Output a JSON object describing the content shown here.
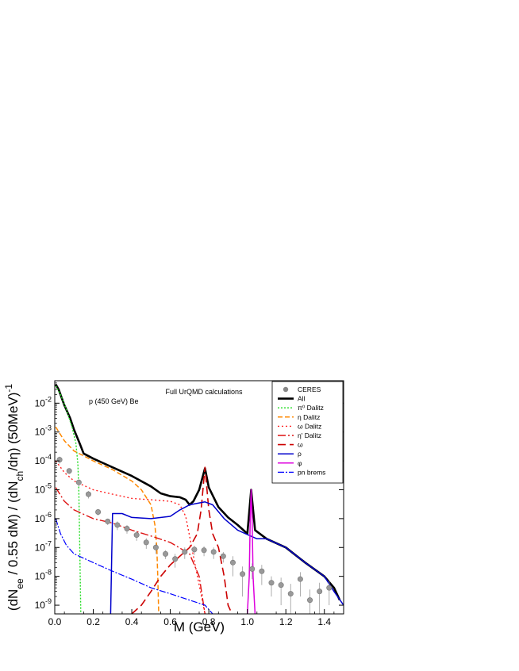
{
  "chart_data": {
    "type": "line",
    "title": "Full UrQMD calculations",
    "subtitle": "p (450 GeV) Be",
    "xlabel": "M (GeV)",
    "ylabel": "(dN_ee / 0.55 dM) / (dN_ch/dη) (50MeV)^-1",
    "xlim": [
      0,
      1.5
    ],
    "ylim": [
      5e-10,
      0.06
    ],
    "yscale": "log",
    "grid": false,
    "legend_position": "top-right",
    "x_ticks": [
      "0.0",
      "0.2",
      "0.4",
      "0.6",
      "0.8",
      "1.0",
      "1.2",
      "1.4"
    ],
    "y_ticks": [
      {
        "base": "10",
        "exp": "-9"
      },
      {
        "base": "10",
        "exp": "-8"
      },
      {
        "base": "10",
        "exp": "-7"
      },
      {
        "base": "10",
        "exp": "-6"
      },
      {
        "base": "10",
        "exp": "-5"
      },
      {
        "base": "10",
        "exp": "-4"
      },
      {
        "base": "10",
        "exp": "-3"
      },
      {
        "base": "10",
        "exp": "-2"
      }
    ],
    "series": [
      {
        "name": "All",
        "color": "#000000",
        "dash": "",
        "width": 2.6,
        "points": [
          [
            0.005,
            0.045
          ],
          [
            0.02,
            0.03
          ],
          [
            0.05,
            0.0085
          ],
          [
            0.08,
            0.003
          ],
          [
            0.1,
            0.0012
          ],
          [
            0.13,
            0.0004
          ],
          [
            0.15,
            0.00018
          ],
          [
            0.2,
            0.00012
          ],
          [
            0.3,
            6e-05
          ],
          [
            0.4,
            3e-05
          ],
          [
            0.5,
            1.3e-05
          ],
          [
            0.55,
            7.5e-06
          ],
          [
            0.6,
            6e-06
          ],
          [
            0.65,
            5.5e-06
          ],
          [
            0.68,
            4.5e-06
          ],
          [
            0.7,
            3e-06
          ],
          [
            0.72,
            4e-06
          ],
          [
            0.75,
            1e-05
          ],
          [
            0.78,
            5.5e-05
          ],
          [
            0.8,
            1.2e-05
          ],
          [
            0.85,
            2.5e-06
          ],
          [
            0.9,
            1.1e-06
          ],
          [
            0.95,
            6e-07
          ],
          [
            1.0,
            3e-07
          ],
          [
            1.02,
            1e-05
          ],
          [
            1.04,
            4e-07
          ],
          [
            1.1,
            2e-07
          ],
          [
            1.2,
            1e-07
          ],
          [
            1.3,
            3e-08
          ],
          [
            1.4,
            1e-08
          ],
          [
            1.45,
            4e-09
          ],
          [
            1.48,
            1.5e-09
          ]
        ]
      },
      {
        "name": "π⁰ Dalitz",
        "color": "#22dd22",
        "dash": "2,2",
        "width": 1.4,
        "points": [
          [
            0.005,
            0.04
          ],
          [
            0.03,
            0.02
          ],
          [
            0.06,
            0.006
          ],
          [
            0.09,
            0.0015
          ],
          [
            0.11,
            0.0004
          ],
          [
            0.12,
            8e-05
          ],
          [
            0.125,
            1e-05
          ],
          [
            0.13,
            1e-07
          ],
          [
            0.135,
            5e-10
          ]
        ]
      },
      {
        "name": "η Dalitz",
        "color": "#ff8800",
        "dash": "6,3",
        "width": 1.5,
        "points": [
          [
            0.005,
            0.0015
          ],
          [
            0.05,
            0.0005
          ],
          [
            0.1,
            0.00022
          ],
          [
            0.15,
            0.00015
          ],
          [
            0.2,
            0.0001
          ],
          [
            0.3,
            5e-05
          ],
          [
            0.4,
            2e-05
          ],
          [
            0.45,
            1e-05
          ],
          [
            0.5,
            3e-06
          ],
          [
            0.52,
            6e-07
          ],
          [
            0.53,
            1e-07
          ],
          [
            0.535,
            1e-08
          ],
          [
            0.54,
            5e-10
          ]
        ]
      },
      {
        "name": "ω Dalitz",
        "color": "#ff2222",
        "dash": "2,3",
        "width": 1.4,
        "points": [
          [
            0.005,
            0.0001
          ],
          [
            0.05,
            4e-05
          ],
          [
            0.1,
            2e-05
          ],
          [
            0.2,
            1e-05
          ],
          [
            0.3,
            7e-06
          ],
          [
            0.4,
            5e-06
          ],
          [
            0.5,
            4.5e-06
          ],
          [
            0.6,
            4e-06
          ],
          [
            0.65,
            3e-06
          ],
          [
            0.68,
            1.2e-06
          ],
          [
            0.7,
            2.5e-07
          ],
          [
            0.72,
            5e-08
          ],
          [
            0.75,
            5e-09
          ],
          [
            0.78,
            5e-10
          ]
        ]
      },
      {
        "name": "η' Dalitz",
        "color": "#dd1111",
        "dash": "10,3,2,3",
        "width": 1.4,
        "points": [
          [
            0.005,
            1.2e-05
          ],
          [
            0.05,
            4e-06
          ],
          [
            0.1,
            2e-06
          ],
          [
            0.2,
            1e-06
          ],
          [
            0.3,
            7e-07
          ],
          [
            0.4,
            4e-07
          ],
          [
            0.5,
            2.5e-07
          ],
          [
            0.6,
            1.5e-07
          ],
          [
            0.7,
            6e-08
          ],
          [
            0.75,
            1e-08
          ],
          [
            0.78,
            5e-10
          ]
        ]
      },
      {
        "name": "ω",
        "color": "#cc0000",
        "dash": "10,5",
        "width": 1.6,
        "points": [
          [
            0.4,
            5e-10
          ],
          [
            0.45,
            1e-09
          ],
          [
            0.5,
            3e-09
          ],
          [
            0.55,
            1e-08
          ],
          [
            0.6,
            2.5e-08
          ],
          [
            0.65,
            5e-08
          ],
          [
            0.7,
            1e-07
          ],
          [
            0.74,
            3e-07
          ],
          [
            0.76,
            2e-06
          ],
          [
            0.78,
            6e-05
          ],
          [
            0.8,
            2e-06
          ],
          [
            0.82,
            3e-07
          ],
          [
            0.85,
            1e-07
          ],
          [
            0.88,
            1e-08
          ],
          [
            0.9,
            1e-09
          ],
          [
            0.92,
            5e-10
          ]
        ]
      },
      {
        "name": "ρ",
        "color": "#0000cc",
        "dash": "",
        "width": 1.5,
        "points": [
          [
            0.29,
            5e-10
          ],
          [
            0.3,
            1.5e-06
          ],
          [
            0.35,
            1.5e-06
          ],
          [
            0.4,
            1.1e-06
          ],
          [
            0.5,
            1e-06
          ],
          [
            0.6,
            1.2e-06
          ],
          [
            0.65,
            2e-06
          ],
          [
            0.7,
            3e-06
          ],
          [
            0.75,
            3.5e-06
          ],
          [
            0.78,
            3.8e-06
          ],
          [
            0.82,
            3e-06
          ],
          [
            0.88,
            1e-06
          ],
          [
            0.95,
            4e-07
          ],
          [
            1.0,
            2.8e-07
          ],
          [
            1.05,
            2e-07
          ],
          [
            1.1,
            2e-07
          ],
          [
            1.2,
            1e-07
          ],
          [
            1.3,
            3e-08
          ],
          [
            1.4,
            1e-08
          ],
          [
            1.45,
            3e-09
          ],
          [
            1.5,
            1e-09
          ]
        ]
      },
      {
        "name": "φ",
        "color": "#dd00dd",
        "dash": "",
        "width": 1.5,
        "points": [
          [
            1.0,
            5e-10
          ],
          [
            1.01,
            1e-08
          ],
          [
            1.015,
            1e-06
          ],
          [
            1.02,
            1e-05
          ],
          [
            1.025,
            1e-06
          ],
          [
            1.03,
            1e-08
          ],
          [
            1.04,
            5e-10
          ]
        ]
      },
      {
        "name": "pn brems",
        "color": "#0000ff",
        "dash": "8,2,2,2",
        "width": 1.2,
        "points": [
          [
            0.005,
            1e-06
          ],
          [
            0.03,
            3e-07
          ],
          [
            0.06,
            1.2e-07
          ],
          [
            0.1,
            6e-08
          ],
          [
            0.2,
            3e-08
          ],
          [
            0.3,
            1.5e-08
          ],
          [
            0.4,
            8e-09
          ],
          [
            0.5,
            4e-09
          ],
          [
            0.6,
            2.5e-09
          ],
          [
            0.7,
            1.5e-09
          ],
          [
            0.78,
            1e-09
          ],
          [
            0.82,
            5e-10
          ]
        ]
      }
    ],
    "ceres_points": [
      [
        0.025,
        0.00011,
        3e-05
      ],
      [
        0.075,
        4.5e-05,
        1e-05
      ],
      [
        0.125,
        1.8e-05,
        5e-06
      ],
      [
        0.175,
        7e-06,
        2e-06
      ],
      [
        0.225,
        1.7e-06,
        4e-07
      ],
      [
        0.275,
        8e-07,
        2e-07
      ],
      [
        0.325,
        6e-07,
        2e-07
      ],
      [
        0.375,
        4.5e-07,
        1.5e-07
      ],
      [
        0.425,
        2.7e-07,
        1e-07
      ],
      [
        0.475,
        1.5e-07,
        6e-08
      ],
      [
        0.525,
        1e-07,
        4e-08
      ],
      [
        0.575,
        6e-08,
        2e-08
      ],
      [
        0.625,
        4e-08,
        2e-08
      ],
      [
        0.675,
        7e-08,
        3e-08
      ],
      [
        0.725,
        8.5e-08,
        3e-08
      ],
      [
        0.775,
        8e-08,
        3e-08
      ],
      [
        0.825,
        7e-08,
        3e-08
      ],
      [
        0.875,
        5e-08,
        2e-08
      ],
      [
        0.925,
        3e-08,
        2e-08
      ],
      [
        0.975,
        1.2e-08,
        1e-08
      ],
      [
        1.025,
        1.8e-08,
        1e-08
      ],
      [
        1.075,
        1.5e-08,
        1e-08
      ],
      [
        1.125,
        6e-09,
        4e-09
      ],
      [
        1.175,
        5e-09,
        4e-09
      ],
      [
        1.225,
        2.5e-09,
        3e-09
      ],
      [
        1.275,
        8e-09,
        6e-09
      ],
      [
        1.325,
        1.5e-09,
        2e-09
      ],
      [
        1.375,
        3e-09,
        3e-09
      ],
      [
        1.425,
        4e-09,
        3e-09
      ]
    ],
    "legend": [
      {
        "label": "CERES",
        "kind": "marker",
        "color": "#888888",
        "dash": ""
      },
      {
        "label": "All",
        "kind": "line",
        "color": "#000000",
        "dash": "",
        "width": 2.6
      },
      {
        "label": "π⁰ Dalitz",
        "kind": "line",
        "color": "#22dd22",
        "dash": "2,2",
        "width": 1.4
      },
      {
        "label": "η Dalitz",
        "kind": "line",
        "color": "#ff8800",
        "dash": "6,3",
        "width": 1.5
      },
      {
        "label": "ω Dalitz",
        "kind": "line",
        "color": "#ff2222",
        "dash": "2,3",
        "width": 1.4
      },
      {
        "label": "η' Dalitz",
        "kind": "line",
        "color": "#dd1111",
        "dash": "10,3,2,3",
        "width": 1.4
      },
      {
        "label": "ω",
        "kind": "line",
        "color": "#cc0000",
        "dash": "10,5",
        "width": 1.6
      },
      {
        "label": "ρ",
        "kind": "line",
        "color": "#0000cc",
        "dash": "",
        "width": 1.5
      },
      {
        "label": "φ",
        "kind": "line",
        "color": "#dd00dd",
        "dash": "",
        "width": 1.5
      },
      {
        "label": "pn brems",
        "kind": "line",
        "color": "#0000ff",
        "dash": "8,2,2,2",
        "width": 1.2
      }
    ]
  }
}
